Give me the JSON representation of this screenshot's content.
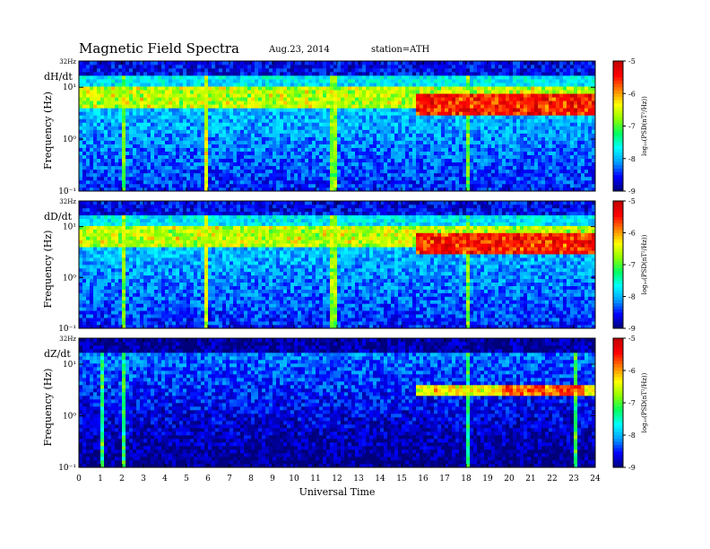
{
  "header": {
    "title": "Magnetic  Field  Spectra",
    "date": "Aug.23, 2014",
    "station": "station=ATH"
  },
  "colorbar": {
    "ticks": [
      "-5",
      "-6",
      "-7",
      "-8",
      "-9"
    ],
    "label": "log₁₀(PSD(nT²/Hz))"
  },
  "chart_data": {
    "type": "heatmap",
    "title": "Magnetic  Field  Spectra",
    "xlabel": "Universal Time",
    "x_ticks": [
      "0",
      "1",
      "2",
      "3",
      "4",
      "5",
      "6",
      "7",
      "8",
      "9",
      "10",
      "11",
      "12",
      "13",
      "14",
      "15",
      "16",
      "17",
      "18",
      "19",
      "20",
      "21",
      "22",
      "23",
      "24"
    ],
    "xlim": [
      0,
      24
    ],
    "ylabel": "Frequency (Hz)",
    "y_scale": "log",
    "y_tick_labels": [
      "32Hz",
      "10¹",
      "10⁰",
      "10⁻¹"
    ],
    "ylim": [
      0.1,
      32
    ],
    "zlim": [
      -9,
      -5
    ],
    "colormap": [
      "#00007a",
      "#0000ff",
      "#00a0ff",
      "#00ffff",
      "#00ff60",
      "#90ff00",
      "#ffff00",
      "#ff8000",
      "#ff0000",
      "#c00000"
    ],
    "panels": [
      {
        "component": "dH/dt",
        "band_events": [
          {
            "start": 15.6,
            "end": 24,
            "freq_hz": [
              3,
              7
            ],
            "level": -5.5
          },
          {
            "start": 0,
            "end": 24,
            "freq_hz": [
              4,
              10
            ],
            "level": -6.6
          }
        ],
        "broadband_events": [
          {
            "time": 2.1,
            "level": -6.8
          },
          {
            "time": 5.9,
            "level": -6.5
          },
          {
            "time": 11.8,
            "level": -6.8
          },
          {
            "time": 18.1,
            "level": -6.9
          }
        ]
      },
      {
        "component": "dD/dt",
        "band_events": [
          {
            "start": 15.6,
            "end": 24,
            "freq_hz": [
              3,
              7
            ],
            "level": -5.5
          },
          {
            "start": 0,
            "end": 24,
            "freq_hz": [
              4,
              10
            ],
            "level": -6.6
          }
        ],
        "broadband_events": [
          {
            "time": 2.1,
            "level": -6.8
          },
          {
            "time": 5.9,
            "level": -6.5
          },
          {
            "time": 11.8,
            "level": -6.8
          },
          {
            "time": 18.1,
            "level": -6.9
          }
        ]
      },
      {
        "component": "dZ/dt",
        "band_events": [
          {
            "start": 15.6,
            "end": 24,
            "freq_hz": [
              2.5,
              4
            ],
            "level": -6.3
          },
          {
            "start": 19.7,
            "end": 23.5,
            "freq_hz": [
              2.5,
              4
            ],
            "level": -5.8
          }
        ],
        "broadband_events": [
          {
            "time": 1.1,
            "level": -7.2
          },
          {
            "time": 2.1,
            "level": -7.2
          },
          {
            "time": 18.1,
            "level": -7.3
          },
          {
            "time": 23.1,
            "level": -7.0
          }
        ]
      }
    ]
  }
}
